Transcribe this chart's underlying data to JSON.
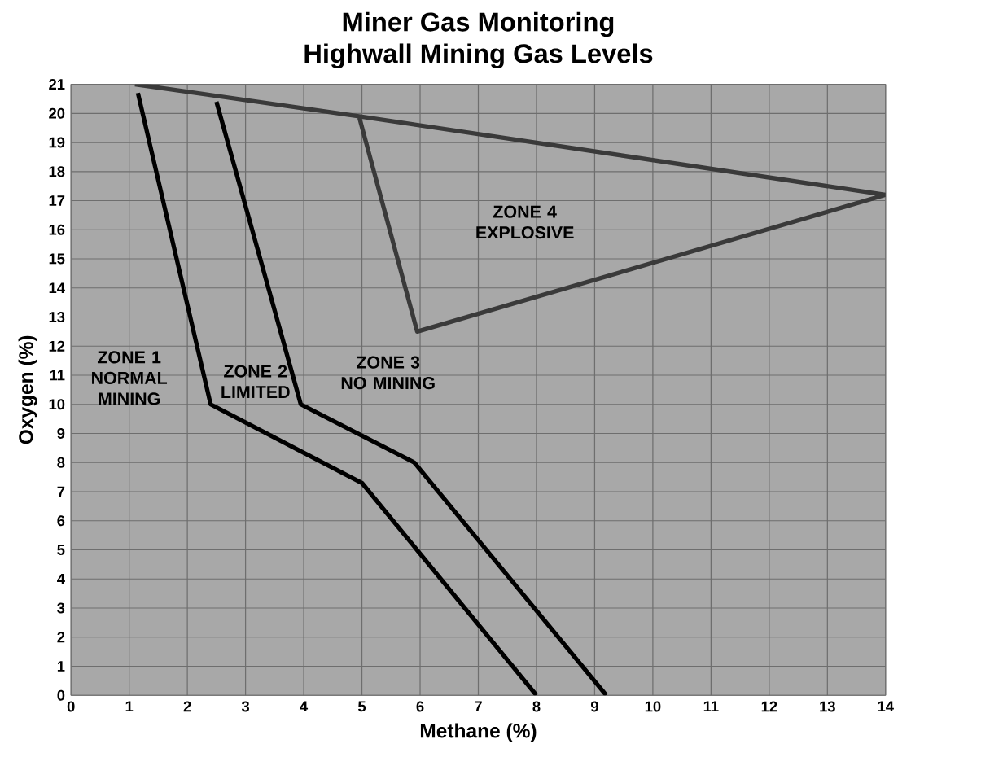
{
  "chart_data": {
    "type": "line",
    "title": "Miner Gas Monitoring",
    "subtitle": "Highwall Mining Gas Levels",
    "xlabel": "Methane (%)",
    "ylabel": "Oxygen (%)",
    "series": [
      {
        "color": "#000000",
        "x": [
          1.15,
          2.4,
          5.0,
          8.0
        ],
        "values": [
          20.7,
          10.0,
          7.3,
          0
        ]
      },
      {
        "color": "#000000",
        "x": [
          2.5,
          3.95,
          5.9,
          9.2
        ],
        "values": [
          20.4,
          10.0,
          8.0,
          0
        ]
      },
      {
        "color": "#3a3a3a",
        "x": [
          1.1,
          4.95,
          14.0,
          5.95,
          4.95
        ],
        "values": [
          21.0,
          19.9,
          17.2,
          12.5,
          19.9
        ]
      }
    ],
    "annotations": [
      "ZONE 1 NORMAL MINING",
      "ZONE 2 LIMITED",
      "ZONE 3 NO MINING",
      "ZONE 4 EXPLOSIVE"
    ],
    "xlim": [
      0,
      14
    ],
    "ylim": [
      0,
      21
    ],
    "xticks": [
      0,
      1,
      2,
      3,
      4,
      5,
      6,
      7,
      8,
      9,
      10,
      11,
      12,
      13,
      14
    ],
    "yticks": [
      0,
      1,
      2,
      3,
      4,
      5,
      6,
      7,
      8,
      9,
      10,
      11,
      12,
      13,
      14,
      15,
      16,
      17,
      18,
      19,
      20,
      21
    ],
    "grid": true,
    "legend": false,
    "marker": "none",
    "line_style": "solid"
  }
}
